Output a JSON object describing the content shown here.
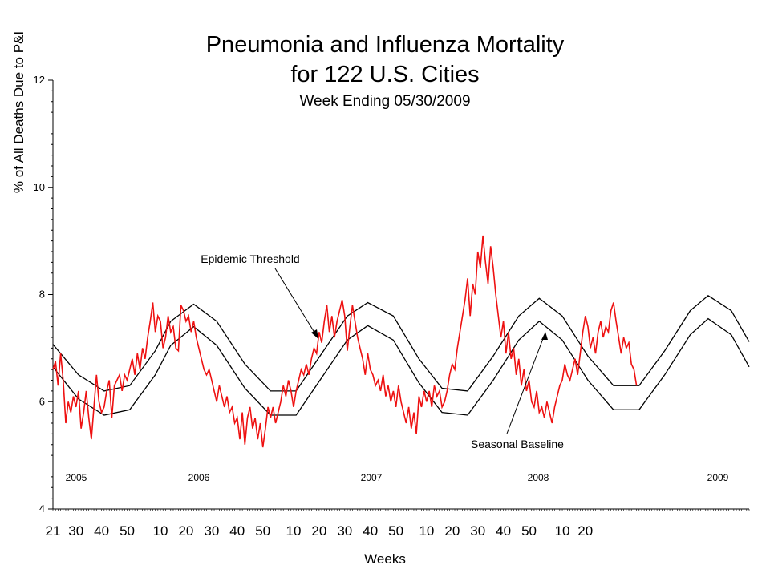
{
  "chart_data": {
    "type": "line",
    "title": "Pneumonia and Influenza Mortality",
    "title2": "for 122 U.S. Cities",
    "subtitle": "Week Ending 05/30/2009",
    "xlabel": "Weeks",
    "ylabel": "% of All Deaths Due to P&I",
    "ylim": [
      4,
      12
    ],
    "y_ticks": [
      "4",
      "6",
      "8",
      "10",
      "12"
    ],
    "x_ticks": [
      "21",
      "30",
      "40",
      "50",
      "10",
      "20",
      "30",
      "40",
      "50",
      "10",
      "20",
      "30",
      "40",
      "50",
      "10",
      "20",
      "30",
      "40",
      "50",
      "10",
      "20"
    ],
    "years": [
      "2005",
      "2006",
      "2007",
      "2008",
      "2009"
    ],
    "annotations": {
      "epidemic": "Epidemic Threshold",
      "baseline": "Seasonal Baseline"
    },
    "series": [
      {
        "name": "Epidemic Threshold",
        "color": "#000000",
        "points": [
          [
            0,
            7.07
          ],
          [
            10,
            6.5
          ],
          [
            20,
            6.2
          ],
          [
            30,
            6.3
          ],
          [
            40,
            6.95
          ],
          [
            46,
            7.5
          ],
          [
            55,
            7.82
          ],
          [
            64,
            7.5
          ],
          [
            75,
            6.7
          ],
          [
            85,
            6.2
          ],
          [
            95,
            6.2
          ],
          [
            105,
            6.9
          ],
          [
            115,
            7.6
          ],
          [
            123,
            7.85
          ],
          [
            133,
            7.6
          ],
          [
            143,
            6.8
          ],
          [
            152,
            6.25
          ],
          [
            162,
            6.2
          ],
          [
            172,
            6.85
          ],
          [
            182,
            7.6
          ],
          [
            190,
            7.93
          ],
          [
            199,
            7.6
          ],
          [
            209,
            6.85
          ],
          [
            219,
            6.3
          ],
          [
            229,
            6.3
          ],
          [
            239,
            6.95
          ],
          [
            249,
            7.7
          ],
          [
            256,
            7.98
          ],
          [
            265,
            7.7
          ],
          [
            272,
            7.12
          ]
        ]
      },
      {
        "name": "Seasonal Baseline",
        "color": "#000000",
        "points": [
          [
            0,
            6.65
          ],
          [
            10,
            6.05
          ],
          [
            20,
            5.75
          ],
          [
            30,
            5.85
          ],
          [
            40,
            6.5
          ],
          [
            46,
            7.05
          ],
          [
            55,
            7.4
          ],
          [
            64,
            7.05
          ],
          [
            75,
            6.25
          ],
          [
            85,
            5.75
          ],
          [
            95,
            5.75
          ],
          [
            105,
            6.45
          ],
          [
            115,
            7.15
          ],
          [
            123,
            7.42
          ],
          [
            133,
            7.15
          ],
          [
            143,
            6.35
          ],
          [
            152,
            5.8
          ],
          [
            162,
            5.75
          ],
          [
            172,
            6.4
          ],
          [
            182,
            7.15
          ],
          [
            190,
            7.5
          ],
          [
            199,
            7.15
          ],
          [
            209,
            6.4
          ],
          [
            219,
            5.85
          ],
          [
            229,
            5.85
          ],
          [
            239,
            6.5
          ],
          [
            249,
            7.25
          ],
          [
            256,
            7.55
          ],
          [
            265,
            7.25
          ],
          [
            272,
            6.65
          ]
        ]
      },
      {
        "name": "P&I Mortality",
        "color": "#ee1111",
        "points": [
          [
            0,
            6.6
          ],
          [
            1,
            6.75
          ],
          [
            2,
            6.3
          ],
          [
            3,
            6.9
          ],
          [
            4,
            6.4
          ],
          [
            5,
            5.6
          ],
          [
            6,
            6.0
          ],
          [
            7,
            5.8
          ],
          [
            8,
            6.1
          ],
          [
            9,
            5.9
          ],
          [
            10,
            6.2
          ],
          [
            11,
            5.5
          ],
          [
            12,
            5.8
          ],
          [
            13,
            6.2
          ],
          [
            14,
            5.7
          ],
          [
            15,
            5.3
          ],
          [
            16,
            5.9
          ],
          [
            17,
            6.5
          ],
          [
            18,
            6.0
          ],
          [
            19,
            5.8
          ],
          [
            20,
            5.9
          ],
          [
            21,
            6.2
          ],
          [
            22,
            6.4
          ],
          [
            23,
            5.7
          ],
          [
            24,
            6.3
          ],
          [
            25,
            6.4
          ],
          [
            26,
            6.5
          ],
          [
            27,
            6.2
          ],
          [
            28,
            6.5
          ],
          [
            29,
            6.4
          ],
          [
            30,
            6.6
          ],
          [
            31,
            6.8
          ],
          [
            32,
            6.5
          ],
          [
            33,
            6.9
          ],
          [
            34,
            6.6
          ],
          [
            35,
            7.0
          ],
          [
            36,
            6.8
          ],
          [
            37,
            7.2
          ],
          [
            38,
            7.5
          ],
          [
            39,
            7.85
          ],
          [
            40,
            7.3
          ],
          [
            41,
            7.6
          ],
          [
            42,
            7.5
          ],
          [
            43,
            7.0
          ],
          [
            44,
            7.2
          ],
          [
            45,
            7.6
          ],
          [
            46,
            7.3
          ],
          [
            47,
            7.4
          ],
          [
            48,
            7.0
          ],
          [
            49,
            6.95
          ],
          [
            50,
            7.8
          ],
          [
            51,
            7.7
          ],
          [
            52,
            7.5
          ],
          [
            53,
            7.6
          ],
          [
            54,
            7.3
          ],
          [
            55,
            7.5
          ],
          [
            56,
            7.2
          ],
          [
            57,
            7.0
          ],
          [
            58,
            6.8
          ],
          [
            59,
            6.6
          ],
          [
            60,
            6.5
          ],
          [
            61,
            6.6
          ],
          [
            62,
            6.4
          ],
          [
            63,
            6.2
          ],
          [
            64,
            6.0
          ],
          [
            65,
            6.3
          ],
          [
            66,
            6.1
          ],
          [
            67,
            5.9
          ],
          [
            68,
            6.1
          ],
          [
            69,
            5.8
          ],
          [
            70,
            5.9
          ],
          [
            71,
            5.6
          ],
          [
            72,
            5.7
          ],
          [
            73,
            5.3
          ],
          [
            74,
            5.8
          ],
          [
            75,
            5.2
          ],
          [
            76,
            5.7
          ],
          [
            77,
            5.9
          ],
          [
            78,
            5.5
          ],
          [
            79,
            5.7
          ],
          [
            80,
            5.3
          ],
          [
            81,
            5.6
          ],
          [
            82,
            5.15
          ],
          [
            83,
            5.5
          ],
          [
            84,
            5.9
          ],
          [
            85,
            5.7
          ],
          [
            86,
            5.9
          ],
          [
            87,
            5.6
          ],
          [
            88,
            5.8
          ],
          [
            89,
            6.0
          ],
          [
            90,
            6.3
          ],
          [
            91,
            6.1
          ],
          [
            92,
            6.4
          ],
          [
            93,
            6.2
          ],
          [
            94,
            5.9
          ],
          [
            95,
            6.2
          ],
          [
            96,
            6.4
          ],
          [
            97,
            6.6
          ],
          [
            98,
            6.5
          ],
          [
            99,
            6.7
          ],
          [
            100,
            6.5
          ],
          [
            101,
            6.8
          ],
          [
            102,
            7.0
          ],
          [
            103,
            6.9
          ],
          [
            104,
            7.3
          ],
          [
            105,
            7.1
          ],
          [
            106,
            7.5
          ],
          [
            107,
            7.8
          ],
          [
            108,
            7.3
          ],
          [
            109,
            7.6
          ],
          [
            110,
            7.2
          ],
          [
            111,
            7.5
          ],
          [
            112,
            7.7
          ],
          [
            113,
            7.9
          ],
          [
            114,
            7.6
          ],
          [
            115,
            6.95
          ],
          [
            116,
            7.4
          ],
          [
            117,
            7.8
          ],
          [
            118,
            7.5
          ],
          [
            119,
            7.2
          ],
          [
            120,
            7.0
          ],
          [
            121,
            6.8
          ],
          [
            122,
            6.5
          ],
          [
            123,
            6.9
          ],
          [
            124,
            6.6
          ],
          [
            125,
            6.5
          ],
          [
            126,
            6.3
          ],
          [
            127,
            6.4
          ],
          [
            128,
            6.2
          ],
          [
            129,
            6.5
          ],
          [
            130,
            6.1
          ],
          [
            131,
            6.3
          ],
          [
            132,
            6.0
          ],
          [
            133,
            6.2
          ],
          [
            134,
            5.9
          ],
          [
            135,
            6.3
          ],
          [
            136,
            6.0
          ],
          [
            137,
            5.8
          ],
          [
            138,
            5.6
          ],
          [
            139,
            5.9
          ],
          [
            140,
            5.5
          ],
          [
            141,
            5.8
          ],
          [
            142,
            5.4
          ],
          [
            143,
            6.1
          ],
          [
            144,
            5.9
          ],
          [
            145,
            6.2
          ],
          [
            146,
            6.0
          ],
          [
            147,
            6.2
          ],
          [
            148,
            5.9
          ],
          [
            149,
            6.3
          ],
          [
            150,
            6.1
          ],
          [
            151,
            6.2
          ],
          [
            152,
            5.9
          ],
          [
            153,
            6.0
          ],
          [
            154,
            6.2
          ],
          [
            155,
            6.5
          ],
          [
            156,
            6.7
          ],
          [
            157,
            6.6
          ],
          [
            158,
            7.0
          ],
          [
            159,
            7.3
          ],
          [
            160,
            7.6
          ],
          [
            161,
            7.9
          ],
          [
            162,
            8.3
          ],
          [
            163,
            7.6
          ],
          [
            164,
            8.2
          ],
          [
            165,
            8.0
          ],
          [
            166,
            8.8
          ],
          [
            167,
            8.5
          ],
          [
            168,
            9.1
          ],
          [
            169,
            8.6
          ],
          [
            170,
            8.2
          ],
          [
            171,
            8.9
          ],
          [
            172,
            8.5
          ],
          [
            173,
            8.0
          ],
          [
            174,
            7.6
          ],
          [
            175,
            7.2
          ],
          [
            176,
            7.5
          ],
          [
            177,
            6.9
          ],
          [
            178,
            7.3
          ],
          [
            179,
            6.8
          ],
          [
            180,
            7.0
          ],
          [
            181,
            6.5
          ],
          [
            182,
            6.8
          ],
          [
            183,
            6.3
          ],
          [
            184,
            6.6
          ],
          [
            185,
            6.2
          ],
          [
            186,
            6.4
          ],
          [
            187,
            6.0
          ],
          [
            188,
            5.9
          ],
          [
            189,
            6.2
          ],
          [
            190,
            5.8
          ],
          [
            191,
            5.9
          ],
          [
            192,
            5.7
          ],
          [
            193,
            6.0
          ],
          [
            194,
            5.8
          ],
          [
            195,
            5.6
          ],
          [
            196,
            5.9
          ],
          [
            197,
            6.1
          ],
          [
            198,
            6.3
          ],
          [
            199,
            6.4
          ],
          [
            200,
            6.7
          ],
          [
            201,
            6.5
          ],
          [
            202,
            6.4
          ],
          [
            203,
            6.6
          ],
          [
            204,
            6.8
          ],
          [
            205,
            6.5
          ],
          [
            206,
            6.9
          ],
          [
            207,
            7.3
          ],
          [
            208,
            7.6
          ],
          [
            209,
            7.4
          ],
          [
            210,
            7.0
          ],
          [
            211,
            7.2
          ],
          [
            212,
            6.9
          ],
          [
            213,
            7.3
          ],
          [
            214,
            7.5
          ],
          [
            215,
            7.2
          ],
          [
            216,
            7.4
          ],
          [
            217,
            7.3
          ],
          [
            218,
            7.7
          ],
          [
            219,
            7.85
          ],
          [
            220,
            7.5
          ],
          [
            221,
            7.2
          ],
          [
            222,
            6.9
          ],
          [
            223,
            7.2
          ],
          [
            224,
            7.0
          ],
          [
            225,
            7.1
          ],
          [
            226,
            6.7
          ],
          [
            227,
            6.6
          ],
          [
            228,
            6.3
          ]
        ]
      }
    ]
  }
}
